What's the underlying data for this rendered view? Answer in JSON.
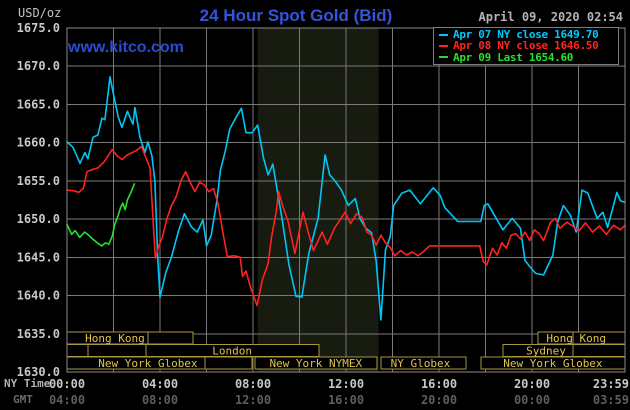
{
  "header": {
    "title": "24 Hour Spot Gold (Bid)",
    "datetime": "April 09, 2020 02:54",
    "watermark": "www.kitco.com",
    "usd_oz_label": "USD/oz"
  },
  "axes": {
    "ny_time_label": "NY Time",
    "gmt_label": "GMT"
  },
  "colors": {
    "background": "#000000",
    "grid": "#7a7a7a",
    "border": "#8a8a8a",
    "band": "#171b10",
    "session_border": "#a8963e",
    "session_text": "#dcc452",
    "axis_text": "#c8c8c8",
    "axis_text_dim": "#5e5e5e",
    "title": "#3554dc",
    "watermark": "#2b4bd0",
    "datetime": "#b4b4b4",
    "legend_border": "#7e7e7e"
  },
  "legend": {
    "items": [
      {
        "text": "Apr 07 NY close 1649.70",
        "color": "#00c8ff"
      },
      {
        "text": "Apr 08 NY close 1646.50",
        "color": "#ff2222"
      },
      {
        "text": "Apr 09 Last 1654.60",
        "color": "#2adf2a"
      }
    ]
  },
  "chart_data": {
    "type": "line",
    "title": "24 Hour Spot Gold (Bid)",
    "x_axis": {
      "label": "NY Time",
      "secondary_label": "GMT",
      "range_hours": [
        0,
        24
      ],
      "gridline_step_hours": 2,
      "ticks": [
        {
          "hour": 0,
          "ny": "00:00",
          "gmt": "04:00"
        },
        {
          "hour": 4,
          "ny": "04:00",
          "gmt": "08:00"
        },
        {
          "hour": 8,
          "ny": "08:00",
          "gmt": "12:00"
        },
        {
          "hour": 12,
          "ny": "12:00",
          "gmt": "16:00"
        },
        {
          "hour": 16,
          "ny": "16:00",
          "gmt": "20:00"
        },
        {
          "hour": 20,
          "ny": "20:00",
          "gmt": "00:00"
        },
        {
          "hour": 24,
          "ny": "23:59",
          "gmt": "03:59"
        }
      ]
    },
    "y_axis": {
      "label": "USD/oz",
      "min": 1630,
      "max": 1675,
      "ticks": [
        1675,
        1670,
        1665,
        1660,
        1655,
        1650,
        1645,
        1640,
        1635,
        1630
      ]
    },
    "session_band": {
      "from": 8.2,
      "to": 13.4
    },
    "series": [
      {
        "name": "apr-07",
        "legend_label": "Apr 07 NY close 1649.70",
        "close": 1649.7,
        "color": "#00c6f8",
        "points": [
          [
            0,
            1660.1
          ],
          [
            0.26,
            1659.4
          ],
          [
            0.56,
            1657.3
          ],
          [
            0.77,
            1658.7
          ],
          [
            0.9,
            1657.9
          ],
          [
            1.12,
            1660.7
          ],
          [
            1.33,
            1661.0
          ],
          [
            1.5,
            1663.2
          ],
          [
            1.63,
            1663.0
          ],
          [
            1.85,
            1668.6
          ],
          [
            2.06,
            1665.4
          ],
          [
            2.2,
            1663.4
          ],
          [
            2.36,
            1662.0
          ],
          [
            2.6,
            1664.1
          ],
          [
            2.84,
            1662.4
          ],
          [
            2.92,
            1664.6
          ],
          [
            3.14,
            1660.7
          ],
          [
            3.35,
            1658.7
          ],
          [
            3.48,
            1660.1
          ],
          [
            3.65,
            1658.3
          ],
          [
            3.78,
            1654.9
          ],
          [
            3.9,
            1645.0
          ],
          [
            4.0,
            1639.8
          ],
          [
            4.25,
            1643.0
          ],
          [
            4.5,
            1645.1
          ],
          [
            4.8,
            1648.5
          ],
          [
            5.05,
            1650.7
          ],
          [
            5.35,
            1649.0
          ],
          [
            5.6,
            1648.3
          ],
          [
            5.85,
            1649.9
          ],
          [
            6.0,
            1646.5
          ],
          [
            6.2,
            1647.9
          ],
          [
            6.45,
            1652.5
          ],
          [
            6.6,
            1656.4
          ],
          [
            6.8,
            1658.8
          ],
          [
            7.0,
            1661.8
          ],
          [
            7.25,
            1663.2
          ],
          [
            7.5,
            1664.5
          ],
          [
            7.7,
            1661.3
          ],
          [
            7.96,
            1661.3
          ],
          [
            8.2,
            1662.3
          ],
          [
            8.45,
            1658.0
          ],
          [
            8.65,
            1655.8
          ],
          [
            8.85,
            1657.2
          ],
          [
            9.25,
            1650.0
          ],
          [
            9.55,
            1644.0
          ],
          [
            9.85,
            1639.9
          ],
          [
            10.1,
            1639.8
          ],
          [
            10.4,
            1645.5
          ],
          [
            10.8,
            1650.1
          ],
          [
            11.1,
            1658.4
          ],
          [
            11.3,
            1655.8
          ],
          [
            11.5,
            1655.1
          ],
          [
            11.8,
            1653.8
          ],
          [
            12.1,
            1651.8
          ],
          [
            12.4,
            1652.7
          ],
          [
            12.6,
            1650.1
          ],
          [
            12.85,
            1648.8
          ],
          [
            13.1,
            1648.2
          ],
          [
            13.3,
            1644.5
          ],
          [
            13.5,
            1636.8
          ],
          [
            13.7,
            1646.0
          ],
          [
            13.9,
            1647.7
          ],
          [
            14.05,
            1651.8
          ],
          [
            14.4,
            1653.4
          ],
          [
            14.75,
            1653.8
          ],
          [
            15.2,
            1652.0
          ],
          [
            15.75,
            1654.1
          ],
          [
            16.05,
            1653.1
          ],
          [
            16.25,
            1651.5
          ],
          [
            16.5,
            1650.7
          ],
          [
            16.8,
            1649.7
          ],
          [
            17.8,
            1649.7
          ],
          [
            17.95,
            1651.8
          ],
          [
            18.1,
            1652.0
          ],
          [
            18.75,
            1648.6
          ],
          [
            19.15,
            1650.1
          ],
          [
            19.5,
            1648.8
          ],
          [
            19.7,
            1644.6
          ],
          [
            19.9,
            1643.8
          ],
          [
            20.15,
            1642.9
          ],
          [
            20.5,
            1642.7
          ],
          [
            20.9,
            1645.3
          ],
          [
            21.1,
            1649.6
          ],
          [
            21.35,
            1651.8
          ],
          [
            21.65,
            1650.5
          ],
          [
            21.9,
            1648.3
          ],
          [
            22.15,
            1653.8
          ],
          [
            22.4,
            1653.4
          ],
          [
            22.8,
            1650.1
          ],
          [
            23.05,
            1650.9
          ],
          [
            23.25,
            1648.9
          ],
          [
            23.65,
            1653.5
          ],
          [
            23.8,
            1652.4
          ],
          [
            24,
            1652.2
          ]
        ]
      },
      {
        "name": "apr-08",
        "legend_label": "Apr 08 NY close 1646.50",
        "close": 1646.5,
        "color": "#ff2222",
        "points": [
          [
            0,
            1653.8
          ],
          [
            0.3,
            1653.7
          ],
          [
            0.5,
            1653.5
          ],
          [
            0.7,
            1654.0
          ],
          [
            0.86,
            1656.2
          ],
          [
            1.1,
            1656.5
          ],
          [
            1.33,
            1656.7
          ],
          [
            1.6,
            1657.5
          ],
          [
            1.94,
            1659.1
          ],
          [
            2.15,
            1658.3
          ],
          [
            2.36,
            1657.8
          ],
          [
            2.6,
            1658.4
          ],
          [
            2.8,
            1658.7
          ],
          [
            3.0,
            1659.0
          ],
          [
            3.2,
            1659.5
          ],
          [
            3.4,
            1658.0
          ],
          [
            3.57,
            1656.7
          ],
          [
            3.7,
            1650.0
          ],
          [
            3.8,
            1644.9
          ],
          [
            3.95,
            1646.5
          ],
          [
            4.1,
            1647.6
          ],
          [
            4.3,
            1650.1
          ],
          [
            4.5,
            1651.8
          ],
          [
            4.7,
            1653.0
          ],
          [
            4.9,
            1655.0
          ],
          [
            5.1,
            1656.2
          ],
          [
            5.3,
            1654.8
          ],
          [
            5.5,
            1653.6
          ],
          [
            5.7,
            1654.8
          ],
          [
            5.9,
            1654.5
          ],
          [
            6.1,
            1653.6
          ],
          [
            6.3,
            1654.0
          ],
          [
            6.5,
            1652.0
          ],
          [
            6.7,
            1648.3
          ],
          [
            6.9,
            1645.1
          ],
          [
            7.2,
            1645.2
          ],
          [
            7.45,
            1645.0
          ],
          [
            7.55,
            1642.5
          ],
          [
            7.7,
            1643.2
          ],
          [
            7.9,
            1641.0
          ],
          [
            8.17,
            1638.7
          ],
          [
            8.4,
            1642.0
          ],
          [
            8.65,
            1644.2
          ],
          [
            8.8,
            1647.7
          ],
          [
            9.0,
            1651.0
          ],
          [
            9.1,
            1653.6
          ],
          [
            9.3,
            1651.5
          ],
          [
            9.5,
            1649.8
          ],
          [
            9.8,
            1645.5
          ],
          [
            10.15,
            1650.9
          ],
          [
            10.4,
            1648.0
          ],
          [
            10.6,
            1645.9
          ],
          [
            10.97,
            1648.3
          ],
          [
            11.2,
            1646.7
          ],
          [
            11.5,
            1648.8
          ],
          [
            11.96,
            1650.9
          ],
          [
            12.2,
            1649.4
          ],
          [
            12.45,
            1650.7
          ],
          [
            12.7,
            1650.2
          ],
          [
            12.9,
            1648.3
          ],
          [
            13.1,
            1647.9
          ],
          [
            13.3,
            1646.6
          ],
          [
            13.5,
            1647.9
          ],
          [
            13.7,
            1646.9
          ],
          [
            13.9,
            1646.3
          ],
          [
            14.1,
            1645.2
          ],
          [
            14.35,
            1645.9
          ],
          [
            14.6,
            1645.3
          ],
          [
            14.85,
            1645.7
          ],
          [
            15.1,
            1645.2
          ],
          [
            15.35,
            1645.8
          ],
          [
            15.6,
            1646.5
          ],
          [
            17.75,
            1646.5
          ],
          [
            17.9,
            1644.5
          ],
          [
            18.05,
            1644.0
          ],
          [
            18.3,
            1646.2
          ],
          [
            18.5,
            1645.3
          ],
          [
            18.7,
            1646.9
          ],
          [
            18.9,
            1646.2
          ],
          [
            19.1,
            1647.9
          ],
          [
            19.3,
            1648.1
          ],
          [
            19.5,
            1647.4
          ],
          [
            19.7,
            1648.3
          ],
          [
            19.9,
            1647.2
          ],
          [
            20.1,
            1648.6
          ],
          [
            20.3,
            1648.1
          ],
          [
            20.5,
            1647.2
          ],
          [
            20.8,
            1649.6
          ],
          [
            21.0,
            1650.1
          ],
          [
            21.2,
            1648.8
          ],
          [
            21.5,
            1649.6
          ],
          [
            21.8,
            1649.0
          ],
          [
            22.0,
            1648.4
          ],
          [
            22.3,
            1649.5
          ],
          [
            22.6,
            1648.3
          ],
          [
            22.9,
            1649.1
          ],
          [
            23.2,
            1648.0
          ],
          [
            23.5,
            1649.2
          ],
          [
            23.8,
            1648.6
          ],
          [
            24,
            1649.2
          ]
        ]
      },
      {
        "name": "apr-09",
        "legend_label": "Apr 09 Last 1654.60",
        "last": 1654.6,
        "color": "#2adf2a",
        "points": [
          [
            0,
            1649.3
          ],
          [
            0.2,
            1648.0
          ],
          [
            0.35,
            1648.5
          ],
          [
            0.55,
            1647.6
          ],
          [
            0.75,
            1648.3
          ],
          [
            0.9,
            1648.0
          ],
          [
            1.1,
            1647.4
          ],
          [
            1.3,
            1646.9
          ],
          [
            1.5,
            1646.5
          ],
          [
            1.65,
            1646.9
          ],
          [
            1.8,
            1646.7
          ],
          [
            1.95,
            1647.8
          ],
          [
            2.05,
            1649.3
          ],
          [
            2.2,
            1650.5
          ],
          [
            2.3,
            1651.5
          ],
          [
            2.4,
            1652.1
          ],
          [
            2.5,
            1651.2
          ],
          [
            2.6,
            1652.5
          ],
          [
            2.75,
            1653.5
          ],
          [
            2.9,
            1654.6
          ]
        ]
      }
    ],
    "sessions": [
      {
        "segments": [
          {
            "from": 0,
            "to": 3.48
          },
          {
            "from": 3.48,
            "to": 5.42
          },
          {
            "from": 20.26,
            "to": 21.76
          },
          {
            "from": 21.76,
            "to": 24
          }
        ],
        "labels": [
          {
            "at": 2.06,
            "text": "Hong Kong"
          },
          {
            "at": 21.9,
            "text": "Hong Kong"
          }
        ]
      },
      {
        "segments": [
          {
            "from": 0,
            "to": 0.9
          },
          {
            "from": 0.9,
            "to": 3.4
          },
          {
            "from": 3.4,
            "to": 10.84
          },
          {
            "from": 18.75,
            "to": 21.76
          },
          {
            "from": 21.76,
            "to": 24
          }
        ],
        "labels": [
          {
            "at": 7.1,
            "text": "London"
          },
          {
            "at": 20.6,
            "text": "Sydney"
          }
        ]
      },
      {
        "segments": [
          {
            "from": 0,
            "to": 5.94
          },
          {
            "from": 5.94,
            "to": 7.96
          },
          {
            "from": 8.09,
            "to": 13.33
          },
          {
            "from": 13.51,
            "to": 17.16
          },
          {
            "from": 17.81,
            "to": 24
          }
        ],
        "labels": [
          {
            "at": 3.48,
            "text": "New York Globex"
          },
          {
            "at": 10.7,
            "text": "New York NYMEX"
          },
          {
            "at": 15.2,
            "text": "NY Globex"
          },
          {
            "at": 20.9,
            "text": "New York Globex"
          }
        ]
      }
    ]
  }
}
